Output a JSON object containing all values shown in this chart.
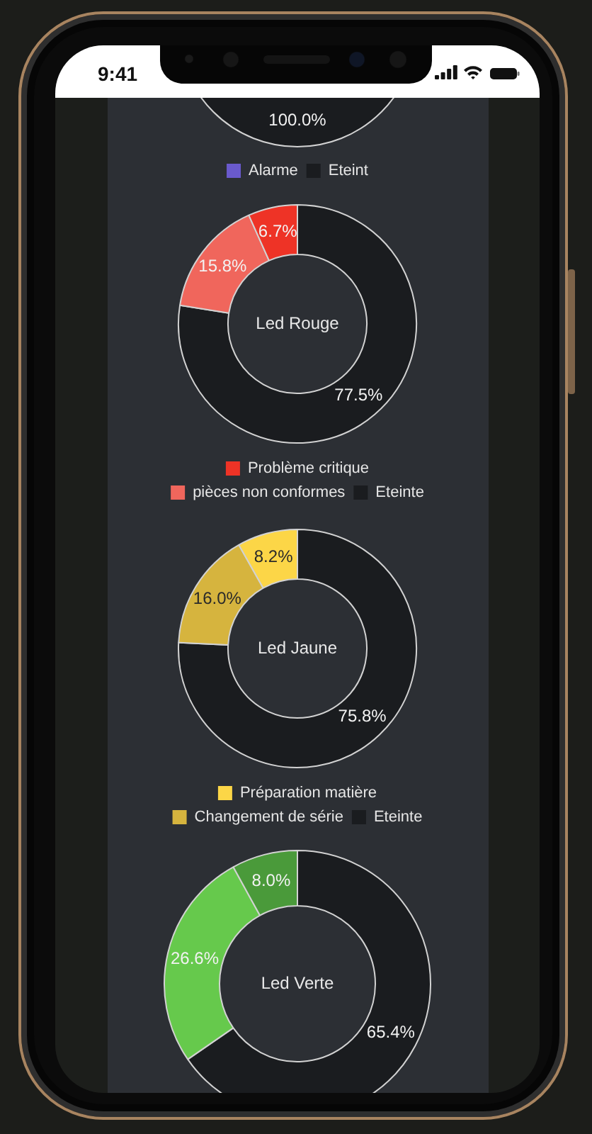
{
  "chart_data": [
    {
      "type": "pie",
      "categories": [
        "Alarme",
        "Eteint"
      ],
      "values": [
        0,
        100
      ],
      "colors": [
        "#6a5acd",
        "#1a1c1f"
      ],
      "value_labels": [
        null,
        "100.0%"
      ],
      "legend": "bottom",
      "annotations": [
        "9:41"
      ]
    },
    {
      "type": "donut",
      "title": "Led Rouge",
      "categories": [
        "Problème critique",
        "pièces non conformes",
        "Eteinte"
      ],
      "values": [
        6.7,
        15.8,
        77.5
      ],
      "colors": [
        "#ee3326",
        "#f0665c",
        "#1a1c1f"
      ],
      "value_labels": [
        "6.7%",
        "15.8%",
        "77.5%"
      ],
      "legend": "bottom"
    },
    {
      "type": "donut",
      "title": "Led Jaune",
      "categories": [
        "Préparation matière",
        "Changement de série",
        "Eteinte"
      ],
      "values": [
        8.2,
        16.0,
        75.8
      ],
      "colors": [
        "#fcd647",
        "#d6b43e",
        "#1a1c1f"
      ],
      "value_labels": [
        "8.2%",
        "16.0%",
        "75.8%"
      ],
      "legend": "bottom"
    },
    {
      "type": "donut",
      "title": "Led Verte",
      "categories": [
        null,
        null,
        null
      ],
      "values": [
        8.0,
        26.6,
        65.4
      ],
      "colors": [
        "#4a9a3a",
        "#66c94c",
        "#1a1c1f"
      ],
      "value_labels": [
        "8.0%",
        "26.6%",
        "65.4%"
      ],
      "legend": false
    }
  ]
}
